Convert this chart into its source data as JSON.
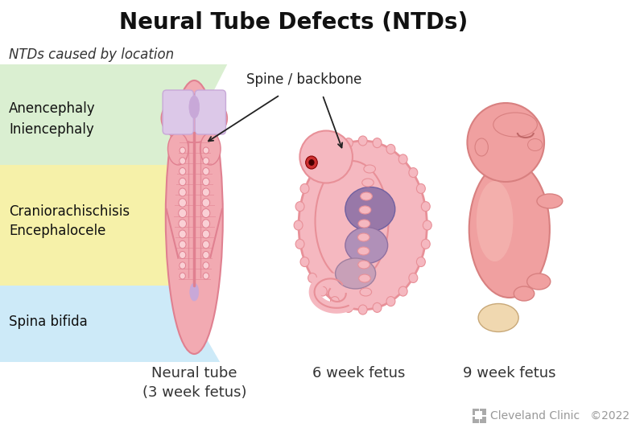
{
  "title": "Neural Tube Defects (NTDs)",
  "title_fontsize": 20,
  "title_fontweight": "bold",
  "subtitle": "NTDs caused by location",
  "subtitle_fontsize": 12,
  "bg_color": "#ffffff",
  "band_label_fontsize": 12,
  "band_label_color": "#111111",
  "fig_label_fontsize": 13,
  "fig_label_color": "#333333",
  "annotation_spine": "Spine / backbone",
  "annotation_spine_fontsize": 12,
  "arrow_color": "#222222",
  "logo_color": "#999999",
  "logo_fontsize": 10
}
